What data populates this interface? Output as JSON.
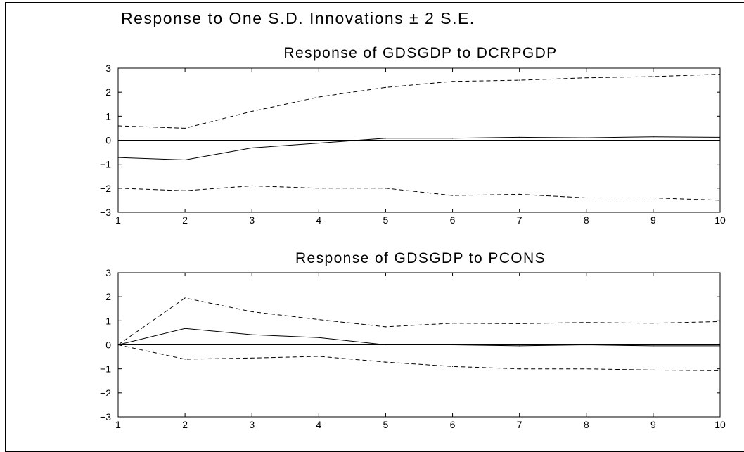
{
  "title": "Response to One S.D. Innovations ± 2 S.E.",
  "chart_data": [
    {
      "type": "line",
      "title": "Response of GDSGDP to DCRPGDP",
      "x": [
        1,
        2,
        3,
        4,
        5,
        6,
        7,
        8,
        9,
        10
      ],
      "xticks": [
        "1",
        "2",
        "3",
        "4",
        "5",
        "6",
        "7",
        "8",
        "9",
        "10"
      ],
      "ylim": [
        -3,
        3
      ],
      "yticks": [
        "3",
        "2",
        "1",
        "0",
        "−1",
        "−2",
        "−3"
      ],
      "series": [
        {
          "role": "response",
          "style": "solid",
          "values": [
            -0.72,
            -0.82,
            -0.32,
            -0.12,
            0.08,
            0.08,
            0.12,
            0.1,
            0.14,
            0.12
          ]
        },
        {
          "role": "upper band",
          "style": "dashed",
          "values": [
            0.6,
            0.5,
            1.2,
            1.8,
            2.2,
            2.45,
            2.5,
            2.6,
            2.65,
            2.75
          ]
        },
        {
          "role": "lower band",
          "style": "dashed",
          "values": [
            -2.0,
            -2.1,
            -1.9,
            -2.0,
            -2.0,
            -2.3,
            -2.25,
            -2.4,
            -2.4,
            -2.5
          ]
        }
      ],
      "grid": false,
      "zero_line": true
    },
    {
      "type": "line",
      "title": "Response of GDSGDP to PCONS",
      "x": [
        1,
        2,
        3,
        4,
        5,
        6,
        7,
        8,
        9,
        10
      ],
      "xticks": [
        "1",
        "2",
        "3",
        "4",
        "5",
        "6",
        "7",
        "8",
        "9",
        "10"
      ],
      "ylim": [
        -3,
        3
      ],
      "yticks": [
        "3",
        "2",
        "1",
        "0",
        "−1",
        "−2",
        "−3"
      ],
      "series": [
        {
          "role": "response",
          "style": "solid",
          "values": [
            0.0,
            0.68,
            0.42,
            0.3,
            0.0,
            0.0,
            -0.04,
            0.0,
            -0.04,
            -0.04
          ]
        },
        {
          "role": "upper band",
          "style": "dashed",
          "values": [
            0.0,
            1.95,
            1.38,
            1.05,
            0.75,
            0.9,
            0.88,
            0.93,
            0.9,
            0.97
          ]
        },
        {
          "role": "lower band",
          "style": "dashed",
          "values": [
            0.0,
            -0.6,
            -0.55,
            -0.48,
            -0.72,
            -0.9,
            -1.0,
            -1.0,
            -1.05,
            -1.08
          ]
        }
      ],
      "grid": false,
      "zero_line": true
    }
  ]
}
